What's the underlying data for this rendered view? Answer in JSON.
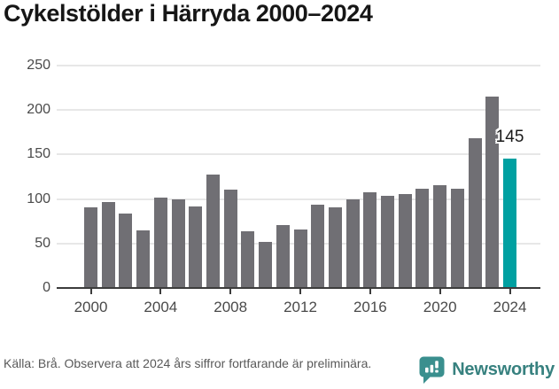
{
  "title": "Cykelstölder i Härryda 2000–2024",
  "chart_data": {
    "type": "bar",
    "title": "Cykelstölder i Härryda 2000–2024",
    "x": [
      2000,
      2001,
      2002,
      2003,
      2004,
      2005,
      2006,
      2007,
      2008,
      2009,
      2010,
      2011,
      2012,
      2013,
      2014,
      2015,
      2016,
      2017,
      2018,
      2019,
      2020,
      2021,
      2022,
      2023,
      2024
    ],
    "values": [
      91,
      97,
      84,
      65,
      102,
      100,
      92,
      127,
      111,
      64,
      52,
      71,
      66,
      94,
      91,
      100,
      108,
      104,
      106,
      112,
      116,
      112,
      168,
      215,
      145
    ],
    "highlight_index": 24,
    "highlight_label": "145",
    "xlabel": "",
    "ylabel": "",
    "ylim": [
      0,
      250
    ],
    "yticks": [
      0,
      50,
      100,
      150,
      200,
      250
    ],
    "xticks": [
      2000,
      2004,
      2008,
      2012,
      2016,
      2020,
      2024
    ],
    "grid": true,
    "legend": "none",
    "colors": {
      "bar": "#706F74",
      "highlight": "#00A0A1",
      "gridline": "#E7E7E7",
      "axis": "#3C3C3C",
      "tick_label": "#4A4A4A",
      "value_label": "#1A1A1A"
    }
  },
  "footer": {
    "source_text": "Källa: Brå. Observera att 2024 års siffror fortfarande är preliminära.",
    "logo": {
      "text": "Newsworthy",
      "text_color": "#37817F",
      "icon_color": "#3A8F8E",
      "icon": "newsworthy-speech-bubble-chart-icon"
    }
  }
}
